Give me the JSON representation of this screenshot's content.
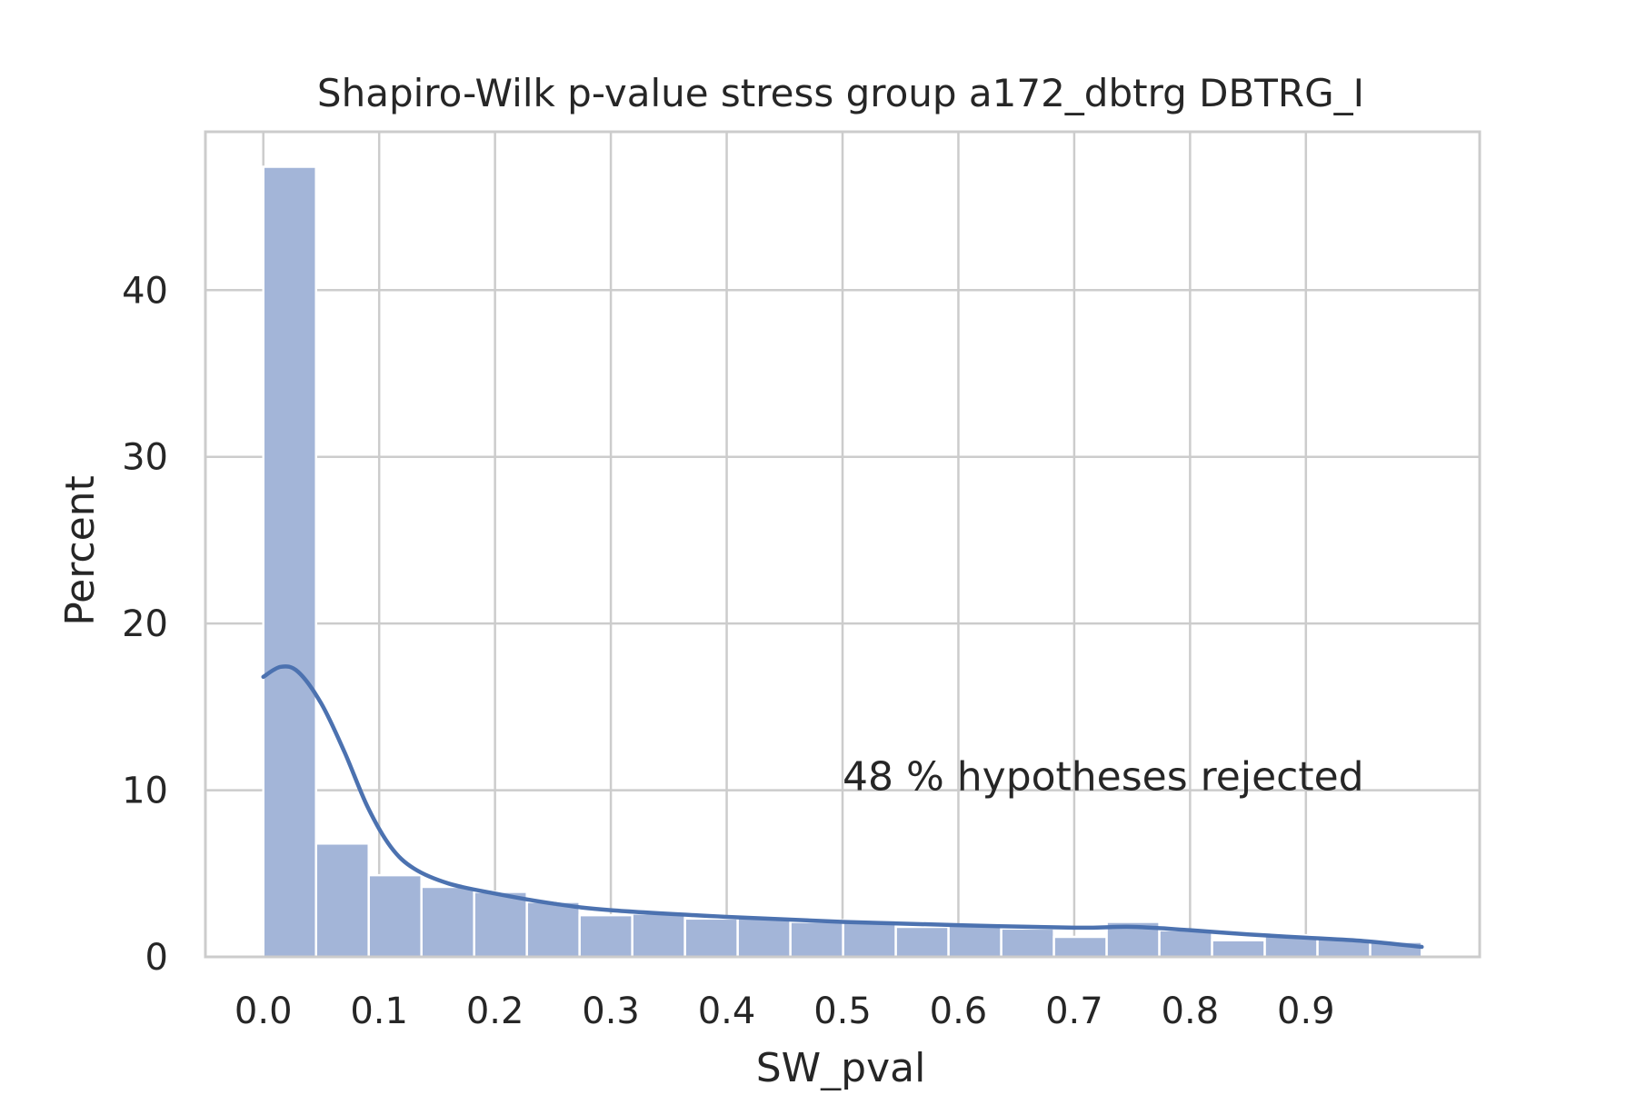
{
  "chart_data": {
    "type": "bar",
    "title": "Shapiro-Wilk p-value stress group a172_dbtrg DBTRG_I",
    "xlabel": "SW_pval",
    "ylabel": "Percent",
    "xlim": [
      -0.05,
      1.05
    ],
    "ylim": [
      0,
      49.5
    ],
    "xticks": [
      0.0,
      0.1,
      0.2,
      0.3,
      0.4,
      0.5,
      0.6,
      0.7,
      0.8,
      0.9
    ],
    "xtick_labels": [
      "0.0",
      "0.1",
      "0.2",
      "0.3",
      "0.4",
      "0.5",
      "0.6",
      "0.7",
      "0.8",
      "0.9"
    ],
    "yticks": [
      0,
      10,
      20,
      30,
      40
    ],
    "ytick_labels": [
      "0",
      "10",
      "20",
      "30",
      "40"
    ],
    "grid": true,
    "bin_edges": [
      0.0,
      0.0455,
      0.091,
      0.1365,
      0.182,
      0.2275,
      0.273,
      0.3185,
      0.364,
      0.4095,
      0.455,
      0.5005,
      0.546,
      0.5915,
      0.637,
      0.6825,
      0.728,
      0.7735,
      0.819,
      0.8645,
      0.91,
      0.9555,
      1.0
    ],
    "values": [
      47.4,
      6.8,
      4.9,
      4.2,
      3.9,
      3.3,
      2.5,
      2.6,
      2.3,
      2.4,
      2.1,
      2.2,
      1.8,
      1.9,
      1.7,
      1.2,
      2.1,
      1.6,
      1.0,
      1.3,
      1.1,
      0.9
    ],
    "kde": {
      "x": [
        0.0,
        0.015,
        0.03,
        0.05,
        0.07,
        0.09,
        0.11,
        0.13,
        0.16,
        0.2,
        0.25,
        0.3,
        0.4,
        0.5,
        0.6,
        0.7,
        0.75,
        0.8,
        0.85,
        0.9,
        0.95,
        1.0
      ],
      "y": [
        16.8,
        17.4,
        17.1,
        15.2,
        12.3,
        9.0,
        6.6,
        5.3,
        4.4,
        3.8,
        3.2,
        2.8,
        2.4,
        2.1,
        1.9,
        1.75,
        1.8,
        1.6,
        1.35,
        1.15,
        0.95,
        0.6
      ]
    },
    "annotation": {
      "text": "48 % hypotheses rejected",
      "x": 0.5,
      "y": 10
    },
    "colors": {
      "bar": "#a3b5d8",
      "bar_edge": "#ffffff",
      "kde": "#4c72b0",
      "grid": "#cccccc",
      "frame": "#cccccc"
    }
  }
}
